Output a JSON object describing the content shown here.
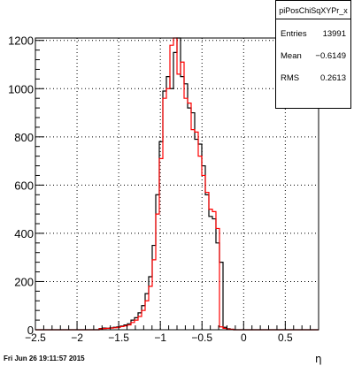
{
  "stats": {
    "title": "piPosChiSqXYPr_x",
    "rows": [
      {
        "label": "Entries",
        "value": "13991"
      },
      {
        "label": "Mean",
        "value": "−0.6149"
      },
      {
        "label": "RMS",
        "value": "0.2613"
      }
    ]
  },
  "timestamp": "Fri Jun 26 19:11:57 2015",
  "chart_data": {
    "type": "line",
    "xlabel": "η",
    "ylabel": "",
    "xlim": [
      -2.5,
      0.9
    ],
    "ylim": [
      0,
      1210
    ],
    "x_ticks": [
      -2.5,
      -2,
      -1.5,
      -1,
      -0.5,
      0,
      0.5
    ],
    "x_tick_labels": [
      "−2.5",
      "−2",
      "−1.5",
      "−1",
      "−0.5",
      "0",
      "0.5"
    ],
    "y_ticks": [
      0,
      200,
      400,
      600,
      800,
      1000,
      1200
    ],
    "y_tick_labels": [
      "0",
      "200",
      "400",
      "600",
      "800",
      "1000",
      "1200"
    ],
    "grid": true,
    "bin_width": 0.0425,
    "series": [
      {
        "color": "#000000",
        "bins": [
          [
            -1.7,
            5
          ],
          [
            -1.6575,
            7
          ],
          [
            -1.615,
            6
          ],
          [
            -1.5725,
            8
          ],
          [
            -1.53,
            10
          ],
          [
            -1.4875,
            12
          ],
          [
            -1.445,
            15
          ],
          [
            -1.4025,
            20
          ],
          [
            -1.36,
            25
          ],
          [
            -1.3175,
            40
          ],
          [
            -1.275,
            50
          ],
          [
            -1.2325,
            70
          ],
          [
            -1.19,
            100
          ],
          [
            -1.1475,
            150
          ],
          [
            -1.105,
            220
          ],
          [
            -1.0625,
            350
          ],
          [
            -1.02,
            560
          ],
          [
            -0.9775,
            780
          ],
          [
            -0.935,
            990
          ],
          [
            -0.8925,
            1050
          ],
          [
            -0.85,
            1000
          ],
          [
            -0.8075,
            1150
          ],
          [
            -0.765,
            1210
          ],
          [
            -0.7225,
            1050
          ],
          [
            -0.68,
            1020
          ],
          [
            -0.6375,
            920
          ],
          [
            -0.595,
            900
          ],
          [
            -0.5525,
            790
          ],
          [
            -0.51,
            770
          ],
          [
            -0.4675,
            680
          ],
          [
            -0.425,
            560
          ],
          [
            -0.3825,
            470
          ],
          [
            -0.34,
            460
          ],
          [
            -0.2975,
            360
          ],
          [
            -0.255,
            280
          ],
          [
            -0.2125,
            10
          ],
          [
            -0.17,
            4
          ],
          [
            -0.1275,
            2
          ]
        ]
      },
      {
        "color": "#ff0000",
        "bins": [
          [
            -1.7,
            4
          ],
          [
            -1.6575,
            5
          ],
          [
            -1.615,
            6
          ],
          [
            -1.5725,
            7
          ],
          [
            -1.53,
            8
          ],
          [
            -1.4875,
            10
          ],
          [
            -1.445,
            13
          ],
          [
            -1.4025,
            16
          ],
          [
            -1.36,
            20
          ],
          [
            -1.3175,
            30
          ],
          [
            -1.275,
            40
          ],
          [
            -1.2325,
            55
          ],
          [
            -1.19,
            80
          ],
          [
            -1.1475,
            120
          ],
          [
            -1.105,
            180
          ],
          [
            -1.0625,
            290
          ],
          [
            -1.02,
            480
          ],
          [
            -0.9775,
            710
          ],
          [
            -0.935,
            960
          ],
          [
            -0.8925,
            1000
          ],
          [
            -0.85,
            1180
          ],
          [
            -0.8075,
            1210
          ],
          [
            -0.765,
            1060
          ],
          [
            -0.7225,
            1110
          ],
          [
            -0.68,
            960
          ],
          [
            -0.6375,
            940
          ],
          [
            -0.595,
            830
          ],
          [
            -0.5525,
            820
          ],
          [
            -0.51,
            720
          ],
          [
            -0.4675,
            640
          ],
          [
            -0.425,
            570
          ],
          [
            -0.3825,
            500
          ],
          [
            -0.34,
            490
          ],
          [
            -0.2975,
            420
          ],
          [
            -0.255,
            12
          ],
          [
            -0.2125,
            6
          ],
          [
            -0.17,
            3
          ],
          [
            -0.1275,
            2
          ]
        ]
      }
    ]
  }
}
